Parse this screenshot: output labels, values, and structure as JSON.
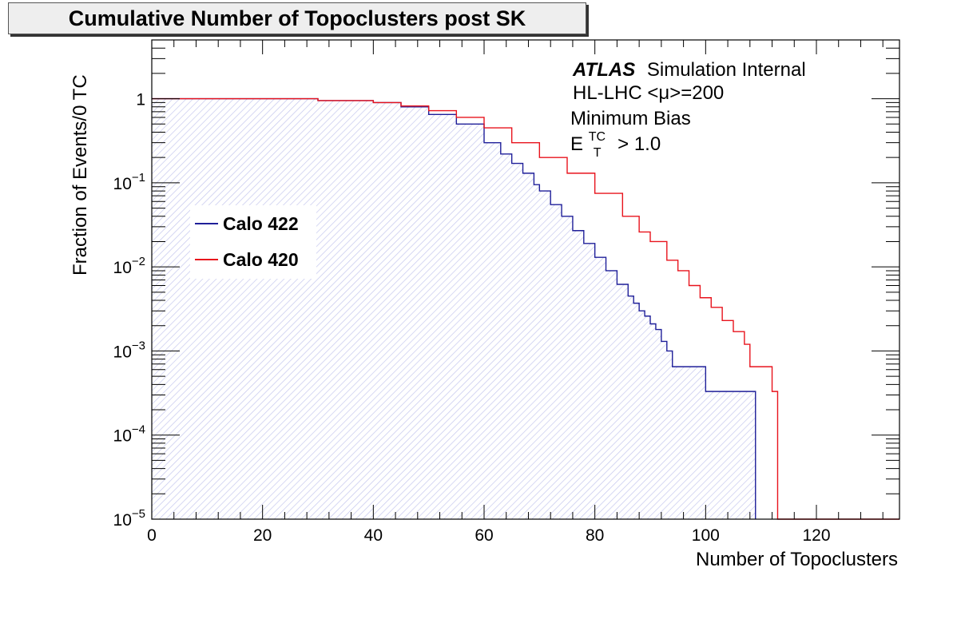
{
  "chart_data": {
    "type": "line",
    "title": "Cumulative Number of Topoclusters post SK",
    "xlabel": "Number of Topoclusters",
    "ylabel": "Fraction of Events/0 TC",
    "xlim": [
      0,
      135
    ],
    "ylim": [
      1e-05,
      5
    ],
    "yscale": "log",
    "x_ticks": [
      0,
      20,
      40,
      60,
      80,
      100,
      120
    ],
    "y_ticks": [
      {
        "value": 1,
        "base": "1",
        "exp": ""
      },
      {
        "value": 0.1,
        "base": "10",
        "exp": "−1"
      },
      {
        "value": 0.01,
        "base": "10",
        "exp": "−2"
      },
      {
        "value": 0.001,
        "base": "10",
        "exp": "−3"
      },
      {
        "value": 0.0001,
        "base": "10",
        "exp": "−4"
      },
      {
        "value": 1e-05,
        "base": "10",
        "exp": "−5"
      }
    ],
    "annotations": {
      "experiment": "ATLAS",
      "status": "Simulation Internal",
      "conditions": "HL-LHC <μ>=200",
      "sample": "Minimum Bias",
      "cut_symbol": "E",
      "cut_sup": "TC",
      "cut_sub": "T",
      "cut_value": "> 1.0"
    },
    "legend_position": "center-left",
    "grid": false,
    "series": [
      {
        "name": "Calo 422",
        "color": "#1f1f99",
        "fill": "hatched",
        "x": [
          0,
          30,
          40,
          45,
          50,
          55,
          60,
          63,
          65,
          67,
          69,
          70,
          72,
          74,
          76,
          78,
          80,
          82,
          84,
          86,
          87,
          88,
          89,
          90,
          91,
          92,
          93,
          94,
          100,
          109
        ],
        "values": [
          1,
          0.95,
          0.9,
          0.8,
          0.65,
          0.5,
          0.3,
          0.22,
          0.17,
          0.13,
          0.095,
          0.08,
          0.055,
          0.04,
          0.027,
          0.019,
          0.013,
          0.009,
          0.0062,
          0.0045,
          0.0037,
          0.003,
          0.0026,
          0.0021,
          0.0018,
          0.0013,
          0.001,
          0.00065,
          0.00033,
          1e-05
        ]
      },
      {
        "name": "Calo 420",
        "color": "#e8131c",
        "fill": "none",
        "x": [
          0,
          30,
          40,
          45,
          50,
          55,
          60,
          65,
          70,
          75,
          80,
          85,
          88,
          90,
          93,
          95,
          97,
          99,
          101,
          103,
          105,
          107,
          108,
          112,
          113,
          135
        ],
        "values": [
          1,
          0.95,
          0.9,
          0.82,
          0.72,
          0.6,
          0.45,
          0.3,
          0.2,
          0.13,
          0.075,
          0.04,
          0.026,
          0.02,
          0.012,
          0.009,
          0.006,
          0.0043,
          0.0033,
          0.0023,
          0.0017,
          0.0012,
          0.00065,
          0.00033,
          1e-05,
          1e-05
        ]
      }
    ]
  }
}
